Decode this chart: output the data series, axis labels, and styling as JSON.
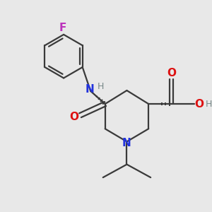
{
  "background_color": "#e8e8e8",
  "bond_color": "#3a3a3a",
  "N_color": "#2233dd",
  "O_color": "#dd1111",
  "F_color": "#bb33bb",
  "H_color": "#778888",
  "figsize": [
    3.0,
    3.0
  ],
  "dpi": 100,
  "xlim": [
    0,
    10
  ],
  "ylim": [
    0,
    10
  ]
}
